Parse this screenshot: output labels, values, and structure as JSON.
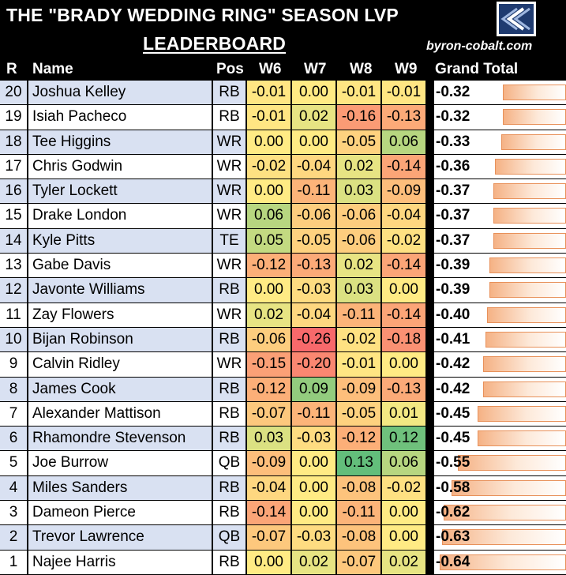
{
  "header": {
    "title_line1": "THE \"BRADY WEDDING RING\" SEASON LVP",
    "title_line2": "LEADERBOARD",
    "site": "byron-cobalt.com",
    "logo_icon": "byron-cobalt-logo-icon"
  },
  "columns": {
    "r": "R",
    "name": "Name",
    "pos": "Pos",
    "w6": "W6",
    "w7": "W7",
    "w8": "W8",
    "w9": "W9",
    "grand": "Grand Total"
  },
  "colors": {
    "band_blue": "#d9e1f2",
    "band_white": "#ffffff",
    "heat_low": "#f8696b",
    "heat_mid": "#ffeb84",
    "heat_high": "#63be7b",
    "bar_border": "#e8915a"
  },
  "chart_data": {
    "type": "table",
    "columns": [
      "R",
      "Name",
      "Pos",
      "W6",
      "W7",
      "W8",
      "W9",
      "Grand Total"
    ],
    "rows": [
      {
        "r": "20",
        "name": "Joshua Kelley",
        "pos": "RB",
        "w6": "-0.01",
        "w7": "0.00",
        "w8": "-0.01",
        "w9": "-0.01",
        "total": "-0.32"
      },
      {
        "r": "19",
        "name": "Isiah Pacheco",
        "pos": "RB",
        "w6": "-0.01",
        "w7": "0.02",
        "w8": "-0.16",
        "w9": "-0.13",
        "total": "-0.32"
      },
      {
        "r": "18",
        "name": "Tee Higgins",
        "pos": "WR",
        "w6": "0.00",
        "w7": "0.00",
        "w8": "-0.05",
        "w9": "0.06",
        "total": "-0.33"
      },
      {
        "r": "17",
        "name": "Chris Godwin",
        "pos": "WR",
        "w6": "-0.02",
        "w7": "-0.04",
        "w8": "0.02",
        "w9": "-0.14",
        "total": "-0.36"
      },
      {
        "r": "16",
        "name": "Tyler Lockett",
        "pos": "WR",
        "w6": "0.00",
        "w7": "-0.11",
        "w8": "0.03",
        "w9": "-0.09",
        "total": "-0.37"
      },
      {
        "r": "15",
        "name": "Drake London",
        "pos": "WR",
        "w6": "0.06",
        "w7": "-0.06",
        "w8": "-0.06",
        "w9": "-0.04",
        "total": "-0.37"
      },
      {
        "r": "14",
        "name": "Kyle Pitts",
        "pos": "TE",
        "w6": "0.05",
        "w7": "-0.05",
        "w8": "-0.06",
        "w9": "-0.02",
        "total": "-0.37"
      },
      {
        "r": "13",
        "name": "Gabe Davis",
        "pos": "WR",
        "w6": "-0.12",
        "w7": "-0.13",
        "w8": "0.02",
        "w9": "-0.14",
        "total": "-0.39"
      },
      {
        "r": "12",
        "name": "Javonte Williams",
        "pos": "RB",
        "w6": "0.00",
        "w7": "-0.03",
        "w8": "0.03",
        "w9": "0.00",
        "total": "-0.39"
      },
      {
        "r": "11",
        "name": "Zay Flowers",
        "pos": "WR",
        "w6": "0.02",
        "w7": "-0.04",
        "w8": "-0.11",
        "w9": "-0.14",
        "total": "-0.40"
      },
      {
        "r": "10",
        "name": "Bijan Robinson",
        "pos": "RB",
        "w6": "-0.06",
        "w7": "-0.26",
        "w8": "-0.02",
        "w9": "-0.18",
        "total": "-0.41"
      },
      {
        "r": "9",
        "name": "Calvin Ridley",
        "pos": "WR",
        "w6": "-0.15",
        "w7": "-0.20",
        "w8": "-0.01",
        "w9": "0.00",
        "total": "-0.42"
      },
      {
        "r": "8",
        "name": "James Cook",
        "pos": "RB",
        "w6": "-0.12",
        "w7": "0.09",
        "w8": "-0.09",
        "w9": "-0.13",
        "total": "-0.42"
      },
      {
        "r": "7",
        "name": "Alexander Mattison",
        "pos": "RB",
        "w6": "-0.07",
        "w7": "-0.11",
        "w8": "-0.05",
        "w9": "0.01",
        "total": "-0.45"
      },
      {
        "r": "6",
        "name": "Rhamondre Stevenson",
        "pos": "RB",
        "w6": "0.03",
        "w7": "-0.03",
        "w8": "-0.12",
        "w9": "0.12",
        "total": "-0.45"
      },
      {
        "r": "5",
        "name": "Joe Burrow",
        "pos": "QB",
        "w6": "-0.09",
        "w7": "0.00",
        "w8": "0.13",
        "w9": "0.06",
        "total": "-0.55"
      },
      {
        "r": "4",
        "name": "Miles Sanders",
        "pos": "RB",
        "w6": "-0.04",
        "w7": "0.00",
        "w8": "-0.08",
        "w9": "-0.02",
        "total": "-0.58"
      },
      {
        "r": "3",
        "name": "Dameon Pierce",
        "pos": "RB",
        "w6": "-0.14",
        "w7": "0.00",
        "w8": "-0.11",
        "w9": "0.00",
        "total": "-0.62"
      },
      {
        "r": "2",
        "name": "Trevor Lawrence",
        "pos": "QB",
        "w6": "-0.07",
        "w7": "-0.03",
        "w8": "-0.08",
        "w9": "0.00",
        "total": "-0.63"
      },
      {
        "r": "1",
        "name": "Najee Harris",
        "pos": "RB",
        "w6": "0.00",
        "w7": "0.02",
        "w8": "-0.07",
        "w9": "0.02",
        "total": "-0.64"
      }
    ]
  }
}
